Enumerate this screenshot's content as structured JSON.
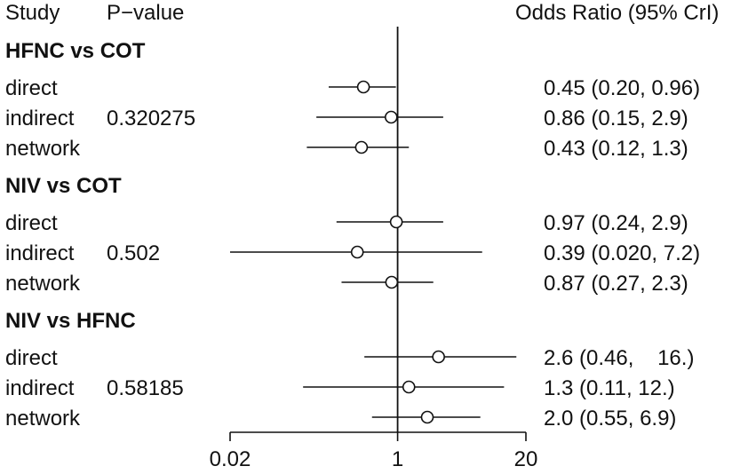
{
  "chart_data": {
    "type": "forest",
    "title": "",
    "headers": {
      "study": "Study",
      "pvalue": "P−value",
      "effect": "Odds Ratio (95% CrI)"
    },
    "x_scale": "log",
    "xlim": [
      0.02,
      20
    ],
    "x_ticks": [
      {
        "value": 0.02,
        "label": "0.02"
      },
      {
        "value": 1,
        "label": "1"
      },
      {
        "value": 20,
        "label": "20"
      }
    ],
    "reference_line": 1,
    "groups": [
      {
        "name": "HFNC vs COT",
        "rows": [
          {
            "label": "direct",
            "pvalue": "",
            "estimate": 0.45,
            "lower": 0.2,
            "upper": 0.96,
            "text": "0.45 (0.20, 0.96)"
          },
          {
            "label": "indirect",
            "pvalue": "0.320275",
            "estimate": 0.86,
            "lower": 0.15,
            "upper": 2.9,
            "text": "0.86 (0.15, 2.9)"
          },
          {
            "label": "network",
            "pvalue": "",
            "estimate": 0.43,
            "lower": 0.12,
            "upper": 1.3,
            "text": "0.43 (0.12, 1.3)"
          }
        ]
      },
      {
        "name": "NIV vs COT",
        "rows": [
          {
            "label": "direct",
            "pvalue": "",
            "estimate": 0.97,
            "lower": 0.24,
            "upper": 2.9,
            "text": "0.97 (0.24, 2.9)"
          },
          {
            "label": "indirect",
            "pvalue": "0.502",
            "estimate": 0.39,
            "lower": 0.02,
            "upper": 7.2,
            "text": "0.39 (0.020, 7.2)"
          },
          {
            "label": "network",
            "pvalue": "",
            "estimate": 0.87,
            "lower": 0.27,
            "upper": 2.3,
            "text": "0.87 (0.27, 2.3)"
          }
        ]
      },
      {
        "name": "NIV vs HFNC",
        "rows": [
          {
            "label": "direct",
            "pvalue": "",
            "estimate": 2.6,
            "lower": 0.46,
            "upper": 16,
            "text": "2.6 (0.46,    16.)"
          },
          {
            "label": "indirect",
            "pvalue": "0.58185",
            "estimate": 1.3,
            "lower": 0.11,
            "upper": 12,
            "text": "1.3 (0.11, 12.)"
          },
          {
            "label": "network",
            "pvalue": "",
            "estimate": 2.0,
            "lower": 0.55,
            "upper": 6.9,
            "text": "2.0 (0.55, 6.9)"
          }
        ]
      }
    ]
  }
}
